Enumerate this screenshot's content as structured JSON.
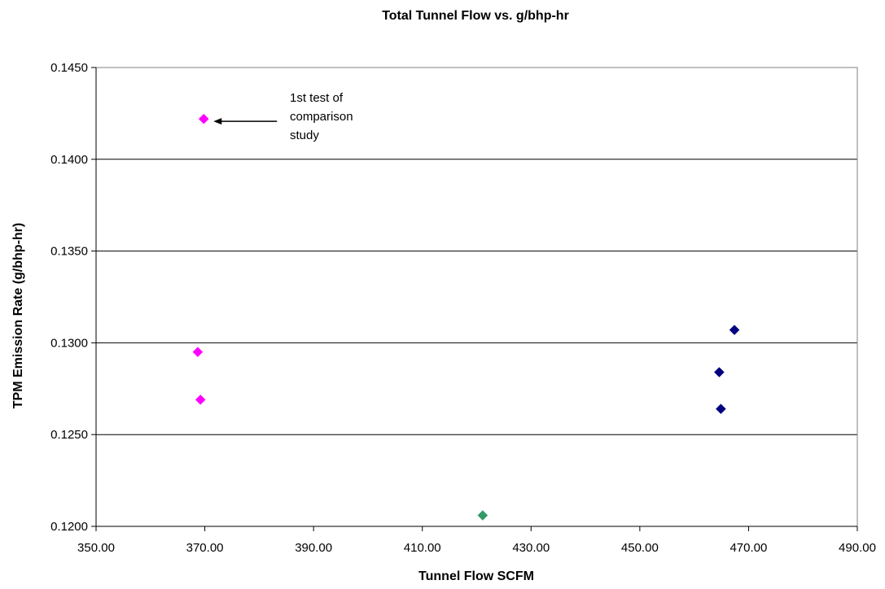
{
  "chart_data": {
    "type": "scatter",
    "title": "Total Tunnel Flow vs. g/bhp-hr",
    "xlabel": "Tunnel Flow SCFM",
    "ylabel": "TPM Emission Rate (g/bhp-hr)",
    "xlim": [
      350,
      490
    ],
    "ylim": [
      0.12,
      0.145
    ],
    "x_ticks": [
      "350.00",
      "370.00",
      "390.00",
      "410.00",
      "430.00",
      "450.00",
      "470.00",
      "490.00"
    ],
    "y_ticks": [
      "0.1200",
      "0.1250",
      "0.1300",
      "0.1350",
      "0.1400",
      "0.1450"
    ],
    "grid": "horizontal",
    "series": [
      {
        "color": "#ff00ff",
        "marker": "diamond",
        "points": [
          {
            "x": 369.8,
            "y": 0.1422
          },
          {
            "x": 368.7,
            "y": 0.1295
          },
          {
            "x": 369.2,
            "y": 0.1269
          }
        ]
      },
      {
        "color": "#339966",
        "marker": "diamond",
        "points": [
          {
            "x": 421.1,
            "y": 0.1206
          }
        ]
      },
      {
        "color": "#000080",
        "marker": "diamond",
        "points": [
          {
            "x": 467.4,
            "y": 0.1307
          },
          {
            "x": 464.6,
            "y": 0.1284
          },
          {
            "x": 464.9,
            "y": 0.1264
          }
        ]
      }
    ],
    "annotations": [
      {
        "lines": [
          "1st test of",
          "comparison",
          "study"
        ],
        "target": {
          "x": 369.8,
          "y": 0.1422
        }
      }
    ]
  }
}
